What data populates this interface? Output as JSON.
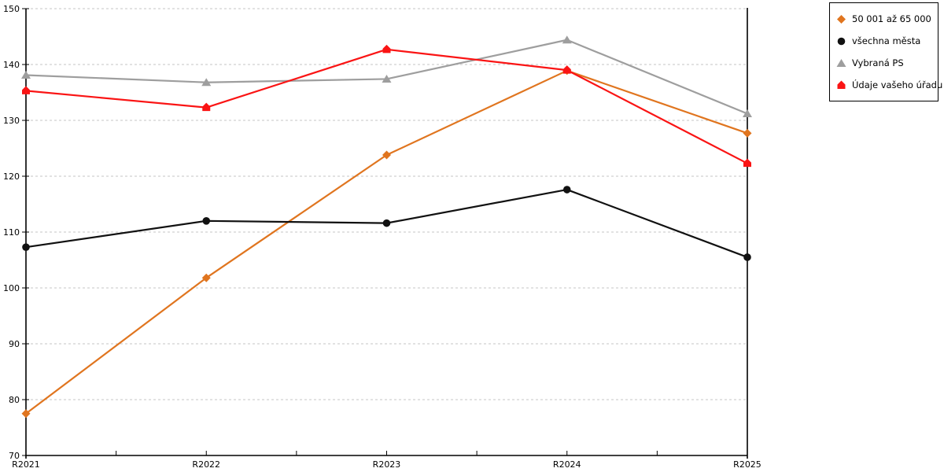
{
  "chart_data": {
    "type": "line",
    "title": "",
    "xlabel": "",
    "ylabel": "",
    "categories": [
      "R2021",
      "R2022",
      "R2023",
      "R2024",
      "R2025"
    ],
    "series": [
      {
        "name": "50 001 až 65 000",
        "marker": "diamond",
        "color": "#E0751F",
        "values": [
          77.5,
          101.8,
          123.8,
          138.9,
          127.7
        ]
      },
      {
        "name": "všechna města",
        "marker": "circle",
        "color": "#111111",
        "values": [
          107.3,
          112.0,
          111.6,
          117.6,
          105.5
        ]
      },
      {
        "name": "Vybraná PS",
        "marker": "triangle",
        "color": "#9E9E9E",
        "values": [
          138.1,
          136.8,
          137.4,
          144.4,
          131.2
        ]
      },
      {
        "name": "Údaje vašeho úřadu",
        "marker": "pentagon",
        "color": "#FA1414",
        "values": [
          135.3,
          132.3,
          142.7,
          139.0,
          122.3
        ]
      }
    ],
    "ylim": [
      70,
      150
    ],
    "yticks": [
      70,
      80,
      90,
      100,
      110,
      120,
      130,
      140,
      150
    ],
    "grid": "horizontal-dashed",
    "gridline_color": "#C4C4C4",
    "axis_color": "#000000",
    "legend_position": "top-right"
  }
}
